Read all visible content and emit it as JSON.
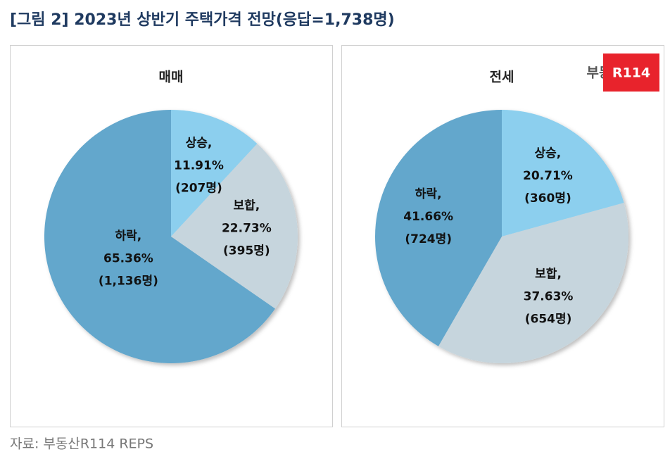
{
  "title": "[그림 2] 2023년 상반기 주택가격 전망(응답=1,738명)",
  "source": "자료: 부동산R114 REPS",
  "logo": {
    "text": "부동산",
    "badge": "R114"
  },
  "chart_data": [
    {
      "type": "pie",
      "title": "매매",
      "categories": [
        "상승,",
        "보합,",
        "하락,"
      ],
      "values": [
        11.91,
        22.73,
        65.36
      ],
      "value_labels": [
        "11.91%",
        "22.73%",
        "65.36%"
      ],
      "counts": [
        207,
        395,
        1136
      ],
      "count_labels": [
        "(207명)",
        "(395명)",
        "(1,136명)"
      ],
      "colors": [
        "#8ccfee",
        "#c6d5dd",
        "#64a7cc"
      ]
    },
    {
      "type": "pie",
      "title": "전세",
      "categories": [
        "상승,",
        "보합,",
        "하락,"
      ],
      "values": [
        20.71,
        37.63,
        41.66
      ],
      "value_labels": [
        "20.71%",
        "37.63%",
        "41.66%"
      ],
      "counts": [
        360,
        654,
        724
      ],
      "count_labels": [
        "(360명)",
        "(654명)",
        "(724명)"
      ],
      "colors": [
        "#8ccfee",
        "#c6d5dd",
        "#64a7cc"
      ]
    }
  ]
}
